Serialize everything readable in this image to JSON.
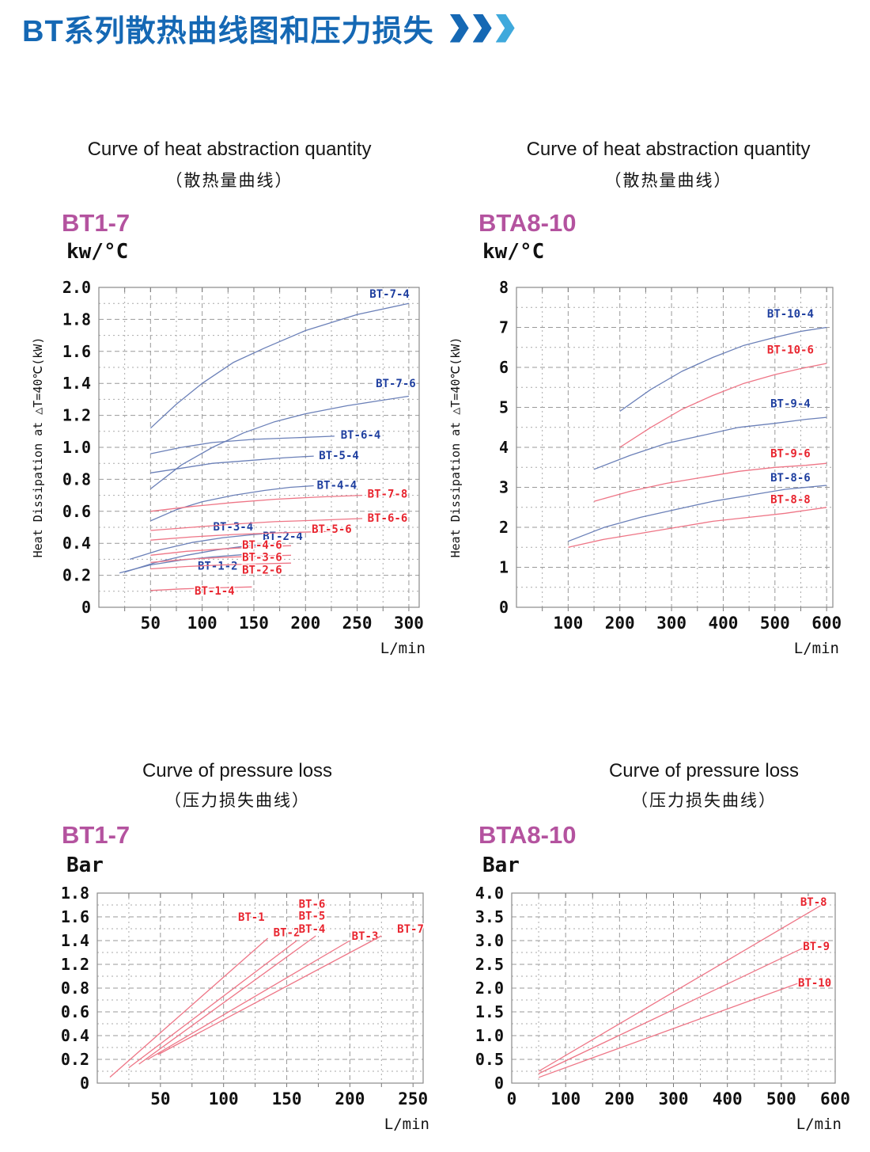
{
  "page": {
    "title": "BT系列散热曲线图和压力损失"
  },
  "colors": {
    "title_blue": "#1568b4",
    "chevron_light_blue": "#3fa9dc",
    "model_magenta": "#b4539f",
    "curve_blue": "#6b80b8",
    "curve_red": "#ee7586",
    "label_blue": "#1f3f9f",
    "label_red": "#e8252f",
    "grid_gray": "#999999"
  },
  "chart_data": [
    {
      "type": "line",
      "title_en": "Curve of heat abstraction quantity",
      "title_zh": "（散热量曲线）",
      "model": "BT1-7",
      "unit": "kw/°C",
      "x_unit": "L/min",
      "y_axis_title": "Heat Dissipation at △T=40℃(kW)",
      "x_range": [
        0,
        310
      ],
      "x_ticks": [
        50,
        100,
        150,
        200,
        250,
        300
      ],
      "y_ticks": [
        "2.0",
        "1.8",
        "1.6",
        "1.4",
        "1.2",
        "1.0",
        "0.8",
        "0.6",
        "0.4",
        "0.2",
        "0"
      ],
      "series": [
        {
          "name": "BT-7-4",
          "color": "blue",
          "points": [
            [
              50,
              1.12
            ],
            [
              75,
              1.27
            ],
            [
              100,
              1.4
            ],
            [
              130,
              1.53
            ],
            [
              160,
              1.62
            ],
            [
              200,
              1.73
            ],
            [
              250,
              1.83
            ],
            [
              300,
              1.9
            ]
          ],
          "label_at": [
            262,
            1.96
          ],
          "label_anchor": "start"
        },
        {
          "name": "BT-7-6",
          "color": "blue",
          "points": [
            [
              50,
              0.74
            ],
            [
              80,
              0.89
            ],
            [
              110,
              1.0
            ],
            [
              140,
              1.09
            ],
            [
              170,
              1.16
            ],
            [
              200,
              1.21
            ],
            [
              240,
              1.26
            ],
            [
              270,
              1.29
            ],
            [
              300,
              1.32
            ]
          ],
          "label_at": [
            268,
            1.4
          ],
          "label_anchor": "start"
        },
        {
          "name": "BT-6-4",
          "color": "blue",
          "points": [
            [
              50,
              0.96
            ],
            [
              80,
              1.0
            ],
            [
              110,
              1.03
            ],
            [
              150,
              1.05
            ],
            [
              190,
              1.06
            ],
            [
              228,
              1.07
            ]
          ],
          "label_at": [
            234,
            1.08
          ],
          "label_anchor": "start"
        },
        {
          "name": "BT-5-4",
          "color": "blue",
          "points": [
            [
              50,
              0.84
            ],
            [
              80,
              0.87
            ],
            [
              110,
              0.9
            ],
            [
              150,
              0.92
            ],
            [
              180,
              0.935
            ],
            [
              208,
              0.945
            ]
          ],
          "label_at": [
            213,
            0.95
          ],
          "label_anchor": "start"
        },
        {
          "name": "BT-4-4",
          "color": "blue",
          "points": [
            [
              50,
              0.54
            ],
            [
              75,
              0.61
            ],
            [
              100,
              0.66
            ],
            [
              130,
              0.7
            ],
            [
              160,
              0.73
            ],
            [
              185,
              0.75
            ],
            [
              208,
              0.76
            ]
          ],
          "label_at": [
            211,
            0.765
          ],
          "label_anchor": "start"
        },
        {
          "name": "BT-3-4",
          "color": "blue",
          "points": [
            [
              30,
              0.3
            ],
            [
              60,
              0.36
            ],
            [
              90,
              0.405
            ],
            [
              120,
              0.435
            ],
            [
              150,
              0.455
            ],
            [
              182,
              0.47
            ]
          ],
          "label_at": [
            130,
            0.505
          ],
          "label_anchor": "middle"
        },
        {
          "name": "BT-2-4",
          "color": "blue",
          "points": [
            [
              25,
              0.22
            ],
            [
              55,
              0.28
            ],
            [
              85,
              0.325
            ],
            [
              115,
              0.36
            ],
            [
              145,
              0.385
            ],
            [
              178,
              0.4
            ]
          ],
          "label_at": [
            178,
            0.445
          ],
          "label_anchor": "middle"
        },
        {
          "name": "BT-1-2",
          "color": "blue",
          "points": [
            [
              20,
              0.215
            ],
            [
              50,
              0.265
            ],
            [
              80,
              0.295
            ],
            [
              110,
              0.315
            ],
            [
              142,
              0.33
            ]
          ],
          "label_at": [
            115,
            0.26
          ],
          "label_anchor": "middle"
        },
        {
          "name": "BT-7-8",
          "color": "red",
          "points": [
            [
              50,
              0.6
            ],
            [
              90,
              0.63
            ],
            [
              130,
              0.655
            ],
            [
              170,
              0.675
            ],
            [
              215,
              0.69
            ],
            [
              255,
              0.7
            ]
          ],
          "label_at": [
            260,
            0.71
          ],
          "label_anchor": "start"
        },
        {
          "name": "BT-6-6",
          "color": "red",
          "points": [
            [
              50,
              0.48
            ],
            [
              90,
              0.5
            ],
            [
              130,
              0.52
            ],
            [
              170,
              0.535
            ],
            [
              215,
              0.545
            ],
            [
              255,
              0.555
            ]
          ],
          "label_at": [
            260,
            0.56
          ],
          "label_anchor": "start"
        },
        {
          "name": "BT-5-6",
          "color": "red",
          "points": [
            [
              50,
              0.42
            ],
            [
              90,
              0.44
            ],
            [
              130,
              0.455
            ],
            [
              170,
              0.465
            ],
            [
              210,
              0.472
            ],
            [
              243,
              0.478
            ]
          ],
          "label_at": [
            206,
            0.49
          ],
          "label_anchor": "start"
        },
        {
          "name": "BT-4-6",
          "color": "red",
          "points": [
            [
              50,
              0.325
            ],
            [
              85,
              0.35
            ],
            [
              120,
              0.365
            ],
            [
              155,
              0.378
            ],
            [
              186,
              0.385
            ]
          ],
          "label_at": [
            158,
            0.39
          ],
          "label_anchor": "middle"
        },
        {
          "name": "BT-3-6",
          "color": "red",
          "points": [
            [
              50,
              0.28
            ],
            [
              85,
              0.3
            ],
            [
              120,
              0.312
            ],
            [
              155,
              0.32
            ],
            [
              186,
              0.325
            ]
          ],
          "label_at": [
            158,
            0.315
          ],
          "label_anchor": "middle"
        },
        {
          "name": "BT-2-6",
          "color": "red",
          "points": [
            [
              50,
              0.24
            ],
            [
              85,
              0.255
            ],
            [
              120,
              0.265
            ],
            [
              155,
              0.272
            ],
            [
              186,
              0.276
            ]
          ],
          "label_at": [
            158,
            0.235
          ],
          "label_anchor": "middle"
        },
        {
          "name": "BT-1-4",
          "color": "red",
          "points": [
            [
              50,
              0.105
            ],
            [
              80,
              0.115
            ],
            [
              115,
              0.122
            ],
            [
              148,
              0.127
            ]
          ],
          "label_at": [
            112,
            0.105
          ],
          "label_anchor": "middle"
        }
      ]
    },
    {
      "type": "line",
      "title_en": "Curve of heat abstraction quantity",
      "title_zh": "（散热量曲线）",
      "model": "BTA8-10",
      "unit": "kw/°C",
      "x_unit": "L/min",
      "y_axis_title": "Heat Dissipation at △T=40℃(kW)",
      "x_range": [
        0,
        612
      ],
      "x_ticks": [
        100,
        200,
        300,
        400,
        500,
        600
      ],
      "y_ticks": [
        "8",
        "7",
        "6",
        "5",
        "4",
        "3",
        "2",
        "1",
        "0"
      ],
      "series": [
        {
          "name": "BT-10-4",
          "color": "blue",
          "points": [
            [
              200,
              4.9
            ],
            [
              260,
              5.45
            ],
            [
              320,
              5.9
            ],
            [
              380,
              6.25
            ],
            [
              440,
              6.55
            ],
            [
              500,
              6.75
            ],
            [
              550,
              6.9
            ],
            [
              600,
              7.0
            ]
          ],
          "label_at": [
            530,
            7.35
          ],
          "label_anchor": "middle"
        },
        {
          "name": "BT-10-6",
          "color": "red",
          "points": [
            [
              200,
              4.0
            ],
            [
              260,
              4.5
            ],
            [
              320,
              4.95
            ],
            [
              380,
              5.3
            ],
            [
              440,
              5.6
            ],
            [
              500,
              5.82
            ],
            [
              550,
              5.97
            ],
            [
              600,
              6.1
            ]
          ],
          "label_at": [
            530,
            6.45
          ],
          "label_anchor": "middle"
        },
        {
          "name": "BT-9-4",
          "color": "blue",
          "points": [
            [
              150,
              3.45
            ],
            [
              220,
              3.8
            ],
            [
              290,
              4.1
            ],
            [
              360,
              4.3
            ],
            [
              430,
              4.5
            ],
            [
              500,
              4.6
            ],
            [
              560,
              4.7
            ],
            [
              600,
              4.75
            ]
          ],
          "label_at": [
            530,
            5.1
          ],
          "label_anchor": "middle"
        },
        {
          "name": "BT-9-6",
          "color": "red",
          "points": [
            [
              150,
              2.65
            ],
            [
              220,
              2.9
            ],
            [
              290,
              3.1
            ],
            [
              360,
              3.25
            ],
            [
              430,
              3.4
            ],
            [
              500,
              3.5
            ],
            [
              560,
              3.55
            ],
            [
              600,
              3.6
            ]
          ],
          "label_at": [
            530,
            3.85
          ],
          "label_anchor": "middle"
        },
        {
          "name": "BT-8-6",
          "color": "blue",
          "points": [
            [
              100,
              1.65
            ],
            [
              170,
              2.0
            ],
            [
              240,
              2.25
            ],
            [
              310,
              2.45
            ],
            [
              380,
              2.65
            ],
            [
              450,
              2.8
            ],
            [
              520,
              2.95
            ],
            [
              600,
              3.05
            ]
          ],
          "label_at": [
            530,
            3.25
          ],
          "label_anchor": "middle"
        },
        {
          "name": "BT-8-8",
          "color": "red",
          "points": [
            [
              100,
              1.5
            ],
            [
              170,
              1.7
            ],
            [
              240,
              1.85
            ],
            [
              310,
              2.0
            ],
            [
              380,
              2.15
            ],
            [
              450,
              2.25
            ],
            [
              520,
              2.35
            ],
            [
              600,
              2.5
            ]
          ],
          "label_at": [
            530,
            2.7
          ],
          "label_anchor": "middle"
        }
      ]
    },
    {
      "type": "line",
      "title_en": "Curve of pressure loss",
      "title_zh": "（压力损失曲线）",
      "model": "BT1-7",
      "unit": "Bar",
      "x_unit": "L/min",
      "y_axis_title": "",
      "x_range": [
        0,
        258
      ],
      "x_ticks": [
        50,
        100,
        150,
        200,
        250
      ],
      "y_ticks": [
        "1.8",
        "1.6",
        "1.4",
        "1.2",
        "0.8",
        "0.6",
        "0.4",
        "0.2",
        "0"
      ],
      "series": [
        {
          "name": "BT-1",
          "color": "red",
          "points": [
            [
              10,
              0.05
            ],
            [
              135,
              1.42
            ]
          ],
          "label_at": [
            122,
            1.6
          ],
          "label_anchor": "middle"
        },
        {
          "name": "BT-2",
          "color": "red",
          "points": [
            [
              25,
              0.13
            ],
            [
              158,
              1.4
            ]
          ],
          "label_at": [
            150,
            1.47
          ],
          "label_anchor": "middle"
        },
        {
          "name": "BT-4",
          "color": "red",
          "points": [
            [
              33,
              0.16
            ],
            [
              173,
              1.44
            ]
          ],
          "label_at": [
            170,
            1.5
          ],
          "label_anchor": "middle"
        },
        {
          "name": "BT-5",
          "color": "red",
          "points": [],
          "label_at": [
            170,
            1.61
          ],
          "label_anchor": "middle"
        },
        {
          "name": "BT-6",
          "color": "red",
          "points": [],
          "label_at": [
            170,
            1.71
          ],
          "label_anchor": "middle"
        },
        {
          "name": "BT-3",
          "color": "red",
          "points": [
            [
              40,
              0.2
            ],
            [
              200,
              1.4
            ]
          ],
          "label_at": [
            212,
            1.44
          ],
          "label_anchor": "middle"
        },
        {
          "name": "BT-7",
          "color": "red",
          "points": [
            [
              48,
              0.24
            ],
            [
              225,
              1.44
            ]
          ],
          "label_at": [
            248,
            1.5
          ],
          "label_anchor": "middle"
        }
      ]
    },
    {
      "type": "line",
      "title_en": "Curve of pressure loss",
      "title_zh": "（压力损失曲线）",
      "model": "BTA8-10",
      "unit": "Bar",
      "x_unit": "L/min",
      "y_axis_title": "",
      "x_range": [
        0,
        600
      ],
      "x_ticks": [
        0,
        100,
        200,
        300,
        400,
        500,
        600
      ],
      "y_ticks": [
        "4.0",
        "3.5",
        "3.0",
        "2.5",
        "2.0",
        "1.5",
        "1.0",
        "0.5",
        "0"
      ],
      "series": [
        {
          "name": "BT-8",
          "color": "red",
          "points": [
            [
              50,
              0.25
            ],
            [
              575,
              3.75
            ]
          ],
          "label_at": [
            560,
            3.82
          ],
          "label_anchor": "middle"
        },
        {
          "name": "BT-9",
          "color": "red",
          "points": [
            [
              50,
              0.2
            ],
            [
              560,
              2.95
            ]
          ],
          "label_at": [
            565,
            2.88
          ],
          "label_anchor": "middle"
        },
        {
          "name": "BT-10",
          "color": "red",
          "points": [
            [
              50,
              0.12
            ],
            [
              555,
              2.2
            ]
          ],
          "label_at": [
            562,
            2.12
          ],
          "label_anchor": "middle"
        }
      ]
    }
  ]
}
